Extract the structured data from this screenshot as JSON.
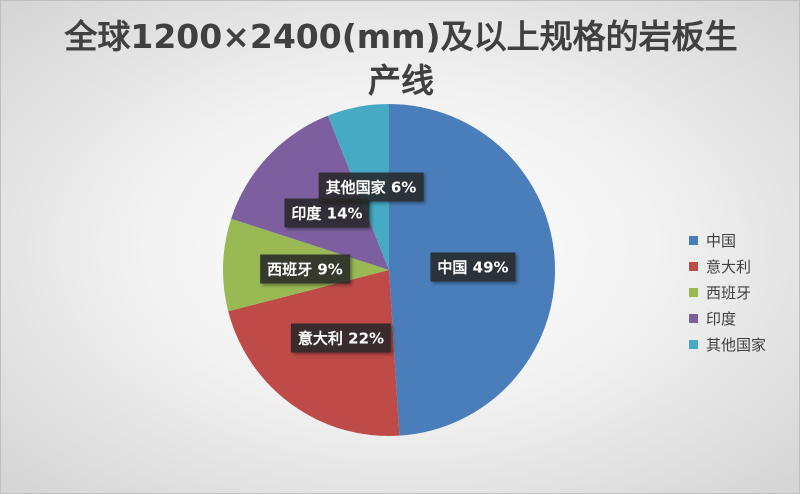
{
  "chart_data": {
    "type": "pie",
    "title": "全球1200×2400(mm)及以上规格的岩板生产线",
    "start_angle": "top",
    "direction": "clockwise",
    "legend_position": "right",
    "slices": [
      {
        "name": "中国",
        "value": 49,
        "label": "中国 49%",
        "color": "#4a7ebb"
      },
      {
        "name": "意大利",
        "value": 22,
        "label": "意大利 22%",
        "color": "#be4b48"
      },
      {
        "name": "西班牙",
        "value": 9,
        "label": "西班牙 9%",
        "color": "#98b954"
      },
      {
        "name": "印度",
        "value": 14,
        "label": "印度 14%",
        "color": "#7d5fa0"
      },
      {
        "name": "其他国家",
        "value": 6,
        "label": "其他国家 6%",
        "color": "#46aac5"
      }
    ]
  }
}
